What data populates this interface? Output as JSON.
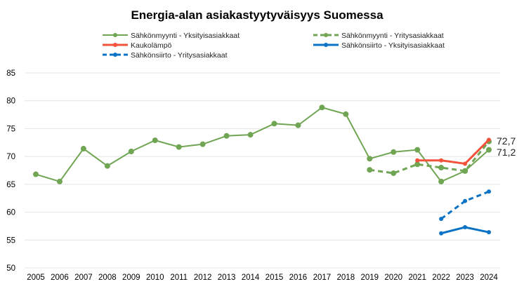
{
  "chart_data": {
    "type": "line",
    "title": "Energia-alan asiakastyytyväisyys Suomessa",
    "xlabel": "",
    "ylabel": "",
    "ylim": [
      50,
      85
    ],
    "yticks": [
      50,
      55,
      60,
      65,
      70,
      75,
      80,
      85
    ],
    "grid": true,
    "legend_position": "top",
    "x": [
      2005,
      2006,
      2007,
      2008,
      2009,
      2010,
      2011,
      2012,
      2013,
      2014,
      2015,
      2016,
      2017,
      2018,
      2019,
      2020,
      2021,
      2022,
      2023,
      2024
    ],
    "series": [
      {
        "name": "Sähkönmyynti - Yksityisasiakkaat",
        "color": "#70a553",
        "dash": false,
        "marker": 6,
        "values": [
          66.8,
          65.5,
          71.4,
          68.3,
          70.9,
          72.9,
          71.7,
          72.2,
          73.7,
          73.9,
          75.9,
          75.6,
          78.8,
          77.6,
          69.6,
          70.8,
          71.2,
          65.5,
          67.4,
          71.2
        ]
      },
      {
        "name": "Sähkönmyynti - Yritysasiakkaat",
        "color": "#70a553",
        "dash": true,
        "marker": 6,
        "values": [
          null,
          null,
          null,
          null,
          null,
          null,
          null,
          null,
          null,
          null,
          null,
          null,
          null,
          null,
          67.6,
          67.0,
          68.6,
          68.0,
          67.4,
          72.7
        ]
      },
      {
        "name": "Kaukolämpö",
        "color": "#f2533c",
        "dash": false,
        "marker": 4,
        "values": [
          null,
          null,
          null,
          null,
          null,
          null,
          null,
          null,
          null,
          null,
          null,
          null,
          null,
          null,
          null,
          null,
          69.3,
          69.3,
          68.7,
          73.0
        ]
      },
      {
        "name": "Sähkönsiirto - Yksityisasiakkaat",
        "color": "#0a73c6",
        "dash": false,
        "marker": 4,
        "values": [
          null,
          null,
          null,
          null,
          null,
          null,
          null,
          null,
          null,
          null,
          null,
          null,
          null,
          null,
          null,
          null,
          null,
          56.2,
          57.3,
          56.4
        ]
      },
      {
        "name": "Sähkönsiirto - Yritysasiakkaat",
        "color": "#0a73c6",
        "dash": true,
        "marker": 4,
        "values": [
          null,
          null,
          null,
          null,
          null,
          null,
          null,
          null,
          null,
          null,
          null,
          null,
          null,
          null,
          null,
          null,
          null,
          58.8,
          62.0,
          63.7
        ]
      }
    ],
    "annotations": [
      "72,7",
      "71,2"
    ]
  }
}
